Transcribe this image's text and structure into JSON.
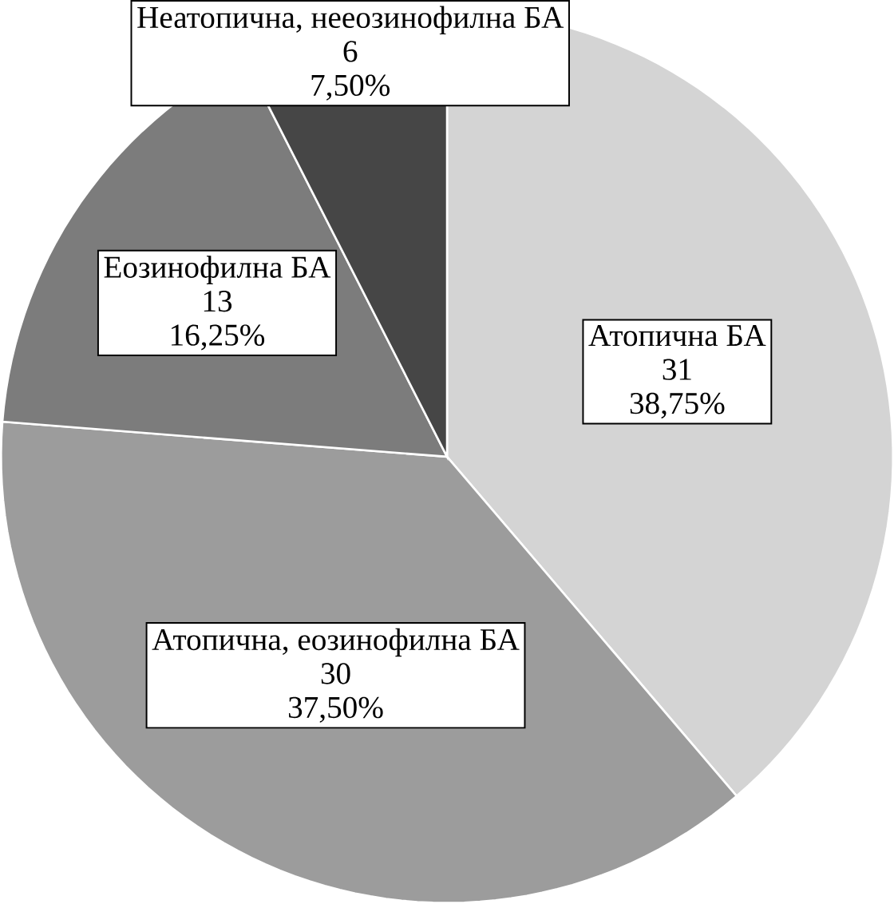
{
  "chart_data": {
    "type": "pie",
    "categories": [
      "Атопична БА",
      "Атопична, еозинофилна БА",
      "Еозинофилна БА",
      "Неатопична, нееозинофилна БА"
    ],
    "values": [
      31,
      30,
      13,
      6
    ],
    "colors": [
      "#d4d4d4",
      "#9c9c9c",
      "#7c7c7c",
      "#464646"
    ],
    "value_labels": [
      "31",
      "30",
      "13",
      "6"
    ],
    "annotations": [
      "38,75%",
      "37,50%",
      "16,25%",
      "7,50%"
    ]
  }
}
